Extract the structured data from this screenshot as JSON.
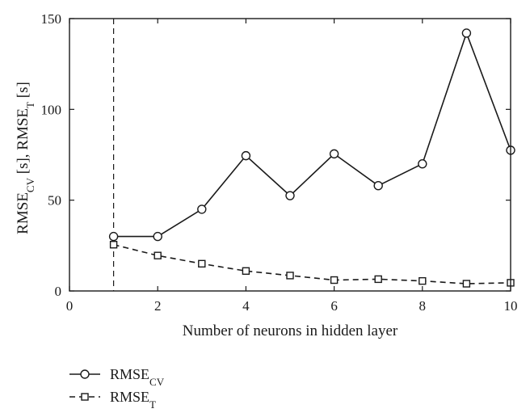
{
  "chart_data": {
    "type": "line",
    "xlabel": "Number of neurons in hidden layer",
    "ylabel": {
      "parts": [
        {
          "text": "RMSE",
          "sub": false
        },
        {
          "text": "CV",
          "sub": true
        },
        {
          "text": " [s], RMSE",
          "sub": false
        },
        {
          "text": "T",
          "sub": true
        },
        {
          "text": " [s]",
          "sub": false
        }
      ]
    },
    "xlim": [
      0,
      10
    ],
    "ylim": [
      0,
      150
    ],
    "xticks": [
      0,
      2,
      4,
      6,
      8,
      10
    ],
    "yticks": [
      0,
      50,
      100,
      150
    ],
    "grid": false,
    "vertical_marker_x": 1,
    "legend_position": "bottom-left",
    "series": [
      {
        "name": "RMSE",
        "name_sub": "CV",
        "line_style": "solid",
        "marker": "circle",
        "color": "#1a1a1a",
        "x": [
          1,
          2,
          3,
          4,
          5,
          6,
          7,
          8,
          9,
          10
        ],
        "y": [
          30,
          30,
          45,
          74.5,
          52.5,
          75.5,
          58,
          70,
          142,
          77.5
        ]
      },
      {
        "name": "RMSE",
        "name_sub": "T",
        "line_style": "dashed",
        "marker": "square",
        "color": "#1a1a1a",
        "x": [
          1,
          2,
          3,
          4,
          5,
          6,
          7,
          8,
          9,
          10
        ],
        "y": [
          25.5,
          19.5,
          15,
          11,
          8.5,
          6,
          6.5,
          5.5,
          4,
          4.5
        ]
      }
    ]
  }
}
